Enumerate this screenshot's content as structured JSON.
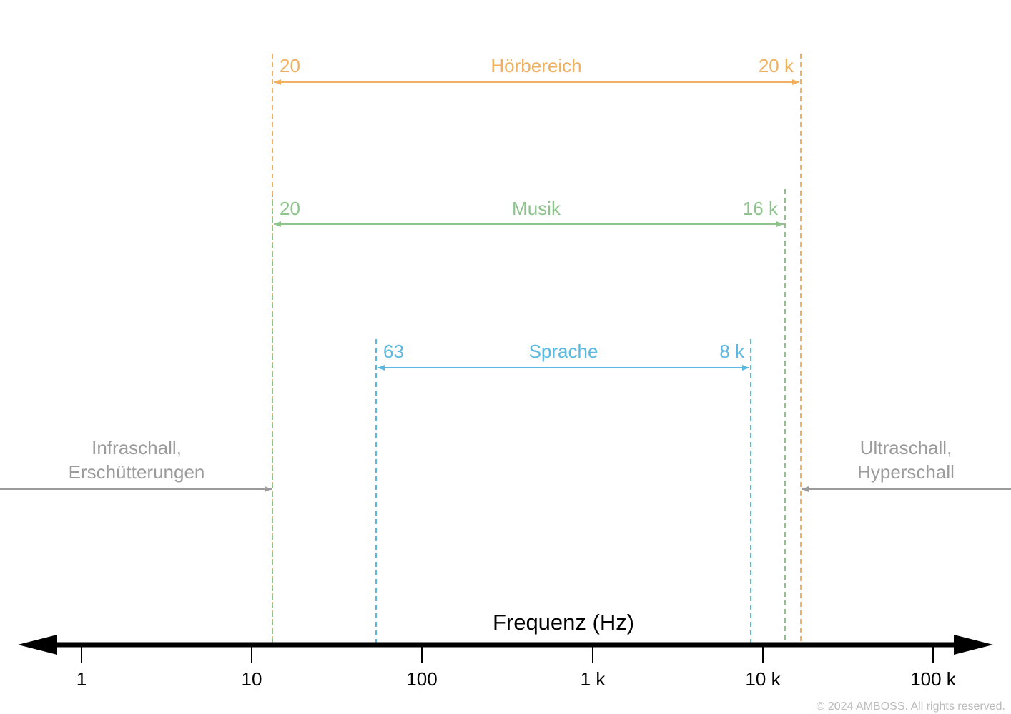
{
  "colors": {
    "hoerbereich": "#F0B060",
    "musik": "#8CC48C",
    "sprache": "#5BB8E0",
    "grey": "#9B9B9B",
    "axis": "#000000",
    "copyright": "#BBBBBB"
  },
  "axis": {
    "title": "Frequenz (Hz)",
    "ticks": [
      {
        "value": 1,
        "label": "1"
      },
      {
        "value": 10,
        "label": "10"
      },
      {
        "value": 100,
        "label": "100"
      },
      {
        "value": 1000,
        "label": "1 k"
      },
      {
        "value": 10000,
        "label": "10 k"
      },
      {
        "value": 100000,
        "label": "100 k"
      }
    ]
  },
  "ranges": [
    {
      "key": "hoerbereich",
      "name": "Hörbereich",
      "low_label": "20",
      "high_label": "20 k",
      "low": 20,
      "high": 20000,
      "color": "#F0B060"
    },
    {
      "key": "musik",
      "name": "Musik",
      "low_label": "20",
      "high_label": "16 k",
      "low": 20,
      "high": 16000,
      "color": "#8CC48C"
    },
    {
      "key": "sprache",
      "name": "Sprache",
      "low_label": "63",
      "high_label": "8 k",
      "low": 63,
      "high": 8000,
      "color": "#5BB8E0"
    }
  ],
  "infraschall": {
    "line1": "Infraschall,",
    "line2": "Erschütterungen",
    "boundary": 20
  },
  "ultraschall": {
    "line1": "Ultraschall,",
    "line2": "Hyperschall",
    "boundary": 20000
  },
  "copyright": "© 2024 AMBOSS. All rights reserved."
}
